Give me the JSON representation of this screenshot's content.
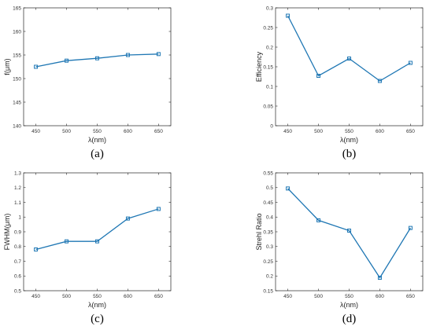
{
  "chart_data": [
    {
      "type": "line",
      "caption": "(a)",
      "xlabel": "λ(nm)",
      "ylabel": "f(μm)",
      "x": [
        450,
        500,
        550,
        600,
        650
      ],
      "xticks": [
        450,
        500,
        550,
        600,
        650
      ],
      "xlim": [
        430,
        670
      ],
      "series": [
        {
          "values": [
            152.5,
            153.8,
            154.3,
            155.0,
            155.2
          ]
        }
      ],
      "ylim": [
        140,
        165
      ],
      "yticks": [
        140,
        145,
        150,
        155,
        160,
        165
      ],
      "grid": false,
      "color": "#1f77b4"
    },
    {
      "type": "line",
      "caption": "(b)",
      "xlabel": "λ(nm)",
      "ylabel": "Efficiency",
      "x": [
        450,
        500,
        550,
        600,
        650
      ],
      "xticks": [
        450,
        500,
        550,
        600,
        650
      ],
      "xlim": [
        430,
        670
      ],
      "series": [
        {
          "values": [
            0.28,
            0.127,
            0.171,
            0.114,
            0.16
          ]
        }
      ],
      "ylim": [
        0,
        0.3
      ],
      "yticks": [
        0,
        0.05,
        0.1,
        0.15,
        0.2,
        0.25,
        0.3
      ],
      "grid": false,
      "color": "#1f77b4"
    },
    {
      "type": "line",
      "caption": "(c)",
      "xlabel": "λ(nm)",
      "ylabel": "FWHM(μm)",
      "x": [
        450,
        500,
        550,
        600,
        650
      ],
      "xticks": [
        450,
        500,
        550,
        600,
        650
      ],
      "xlim": [
        430,
        670
      ],
      "series": [
        {
          "values": [
            0.78,
            0.835,
            0.835,
            0.99,
            1.055
          ]
        }
      ],
      "ylim": [
        0.5,
        1.3
      ],
      "yticks": [
        0.5,
        0.6,
        0.7,
        0.8,
        0.9,
        1,
        1.1,
        1.2,
        1.3
      ],
      "grid": false,
      "color": "#1f77b4"
    },
    {
      "type": "line",
      "caption": "(d)",
      "xlabel": "λ(nm)",
      "ylabel": "Strehl Ratio",
      "x": [
        450,
        500,
        550,
        600,
        650
      ],
      "xticks": [
        450,
        500,
        550,
        600,
        650
      ],
      "xlim": [
        430,
        670
      ],
      "series": [
        {
          "values": [
            0.497,
            0.389,
            0.354,
            0.194,
            0.363
          ]
        }
      ],
      "ylim": [
        0.15,
        0.55
      ],
      "yticks": [
        0.15,
        0.2,
        0.25,
        0.3,
        0.35,
        0.4,
        0.45,
        0.5,
        0.55
      ],
      "grid": false,
      "color": "#1f77b4"
    }
  ]
}
